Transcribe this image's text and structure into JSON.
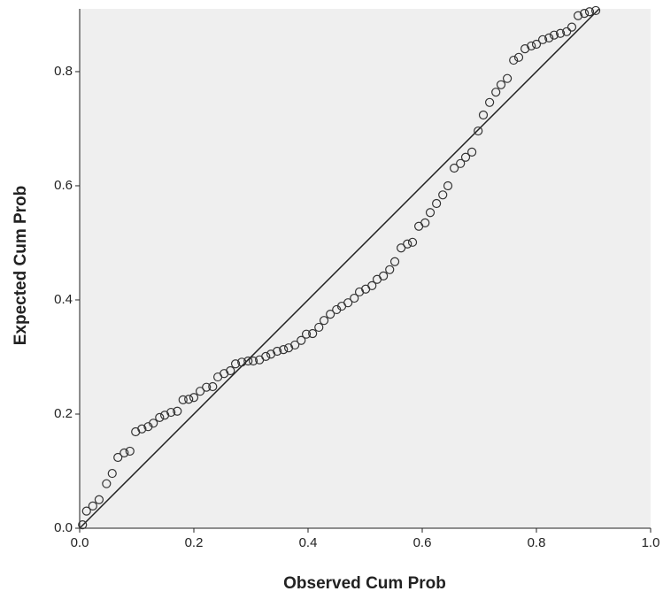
{
  "chart_data": {
    "type": "scatter",
    "x_label": "Observed Cum Prob",
    "y_label": "Expected Cum Prob",
    "xlim": [
      0,
      1.0
    ],
    "ylim": [
      0,
      0.91
    ],
    "xticks": [
      {
        "value": 0,
        "label": "0.0"
      },
      0.2,
      0.4,
      0.6,
      0.8,
      {
        "value": 1,
        "label": "1.0"
      }
    ],
    "yticks": [
      {
        "value": 0,
        "label": "0.0"
      },
      0.2,
      0.4,
      0.6,
      0.8
    ],
    "color": "#333333",
    "series": [
      {
        "name": null,
        "x": [
          0.005,
          0.012,
          0.023,
          0.034,
          0.047,
          0.057,
          0.067,
          0.078,
          0.088,
          0.098,
          0.109,
          0.12,
          0.129,
          0.14,
          0.149,
          0.16,
          0.171,
          0.181,
          0.191,
          0.2,
          0.211,
          0.222,
          0.233,
          0.242,
          0.253,
          0.264,
          0.273,
          0.284,
          0.295,
          0.304,
          0.315,
          0.326,
          0.335,
          0.346,
          0.357,
          0.366,
          0.377,
          0.388,
          0.397,
          0.408,
          0.419,
          0.428,
          0.439,
          0.45,
          0.459,
          0.47,
          0.481,
          0.49,
          0.501,
          0.512,
          0.521,
          0.532,
          0.543,
          0.552,
          0.563,
          0.574,
          0.583,
          0.594,
          0.605,
          0.614,
          0.625,
          0.636,
          0.645,
          0.656,
          0.667,
          0.676,
          0.687,
          0.698,
          0.707,
          0.718,
          0.729,
          0.738,
          0.749,
          0.76,
          0.769,
          0.78,
          0.791,
          0.8,
          0.811,
          0.822,
          0.831,
          0.842,
          0.853,
          0.862,
          0.873,
          0.884,
          0.893,
          0.904
        ],
        "values": [
          0.006,
          0.03,
          0.039,
          0.05,
          0.078,
          0.096,
          0.124,
          0.132,
          0.135,
          0.169,
          0.174,
          0.178,
          0.184,
          0.194,
          0.198,
          0.203,
          0.205,
          0.225,
          0.226,
          0.229,
          0.24,
          0.247,
          0.248,
          0.265,
          0.271,
          0.276,
          0.288,
          0.291,
          0.293,
          0.293,
          0.295,
          0.301,
          0.305,
          0.31,
          0.313,
          0.316,
          0.321,
          0.329,
          0.34,
          0.341,
          0.352,
          0.364,
          0.375,
          0.383,
          0.389,
          0.395,
          0.403,
          0.414,
          0.419,
          0.425,
          0.436,
          0.442,
          0.453,
          0.467,
          0.491,
          0.498,
          0.501,
          0.529,
          0.535,
          0.553,
          0.569,
          0.584,
          0.6,
          0.631,
          0.639,
          0.65,
          0.659,
          0.696,
          0.724,
          0.746,
          0.764,
          0.777,
          0.788,
          0.82,
          0.825,
          0.84,
          0.845,
          0.848,
          0.856,
          0.859,
          0.864,
          0.867,
          0.87,
          0.878,
          0.898,
          0.902,
          0.905,
          0.907
        ]
      }
    ]
  }
}
